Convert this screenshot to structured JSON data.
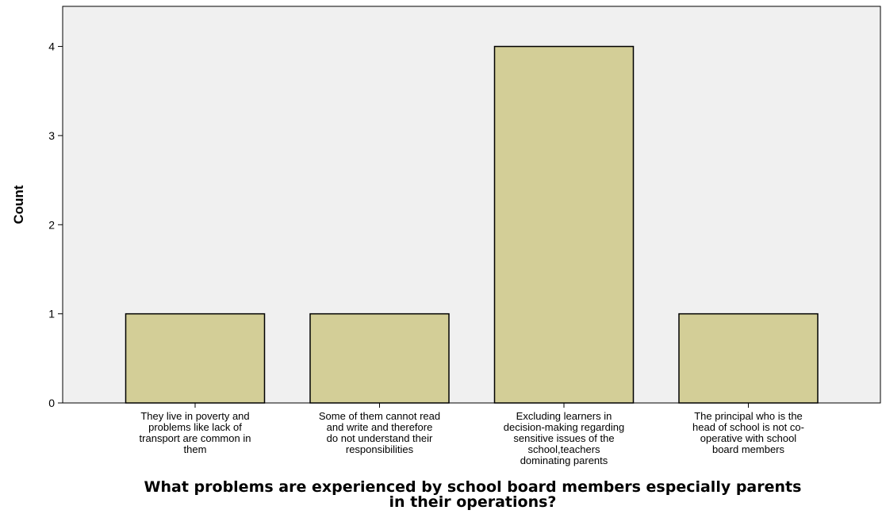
{
  "chart_data": {
    "type": "bar",
    "title": "",
    "xlabel": "What problems are experienced by school board members especially parents in their operations?",
    "xlabel_lines": [
      "What problems are experienced by school board members especially parents",
      "in their operations?"
    ],
    "ylabel": "Count",
    "ylim": [
      0,
      4.45
    ],
    "yticks": [
      0,
      1,
      2,
      3,
      4
    ],
    "grid": false,
    "legend": "none",
    "colors": {
      "plot_background": "#f0f0f0",
      "bar_fill": "#d3ce97",
      "bar_stroke": "#000000",
      "axis": "#000000"
    },
    "categories": [
      "They live in poverty and problems like lack of transport are common in them",
      "Some of them cannot read and write and therefore do not understand their responsibilities",
      "Excluding learners in decision-making regarding sensitive issues of the school,teachers dominating parents",
      "The principal who is the head of school is not co-operative with school board members"
    ],
    "category_label_lines": [
      [
        "They live in poverty and",
        "problems like lack of",
        "transport are common in",
        "them"
      ],
      [
        "Some of them cannot read",
        "and write and therefore",
        "do not understand their",
        "responsibilities"
      ],
      [
        "Excluding learners in",
        "decision-making regarding",
        "sensitive issues of the",
        "school,teachers",
        "dominating parents"
      ],
      [
        "The principal who is the",
        "head of school is not co-",
        "operative with school",
        "board members"
      ]
    ],
    "values": [
      1,
      1,
      4,
      1
    ]
  }
}
